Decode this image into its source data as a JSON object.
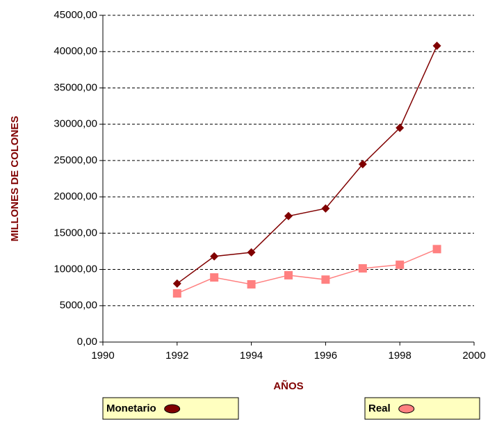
{
  "chart_data": {
    "type": "line",
    "xlabel": "AÑOS",
    "ylabel": "MILLONES DE COLONES",
    "x": [
      1992,
      1993,
      1994,
      1995,
      1996,
      1997,
      1998,
      1999
    ],
    "series": [
      {
        "name": "Monetario",
        "color": "#800000",
        "marker": "diamond",
        "values": [
          8050,
          11800,
          12350,
          17350,
          18400,
          24500,
          29500,
          40800
        ]
      },
      {
        "name": "Real",
        "color": "#ff8080",
        "marker": "square",
        "values": [
          6700,
          8900,
          7950,
          9200,
          8600,
          10150,
          10650,
          12800
        ]
      }
    ],
    "xlim": [
      1990,
      2000
    ],
    "xticks": [
      1990,
      1992,
      1994,
      1996,
      1998,
      2000
    ],
    "ylim": [
      0,
      45000
    ],
    "yticks": [
      {
        "value": 0,
        "label": "0,00"
      },
      {
        "value": 5000,
        "label": "5000,00"
      },
      {
        "value": 10000,
        "label": "10000,00"
      },
      {
        "value": 15000,
        "label": "15000,00"
      },
      {
        "value": 20000,
        "label": "20000,00"
      },
      {
        "value": 25000,
        "label": "25000,00"
      },
      {
        "value": 30000,
        "label": "30000,00"
      },
      {
        "value": 35000,
        "label": "35000,00"
      },
      {
        "value": 40000,
        "label": "40000,00"
      },
      {
        "value": 45000,
        "label": "45000,00"
      }
    ],
    "grid": true
  }
}
